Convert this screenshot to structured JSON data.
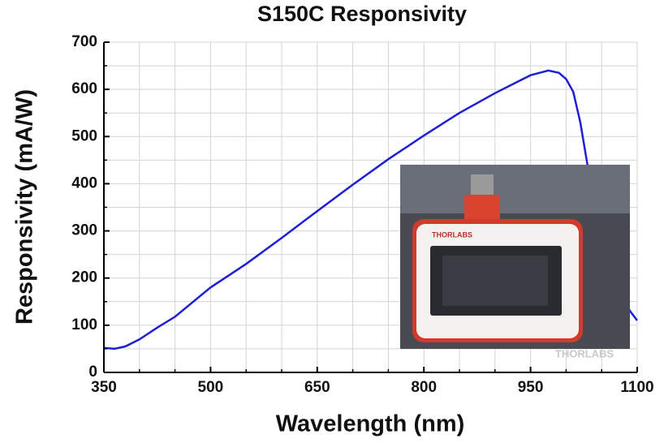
{
  "chart_data": {
    "type": "line",
    "title": "S150C Responsivity",
    "x_label": "Wavelength (nm)",
    "y_label": "Responsivity (mA/W)",
    "x": [
      350,
      365,
      380,
      400,
      425,
      450,
      500,
      550,
      600,
      650,
      700,
      750,
      800,
      850,
      900,
      950,
      975,
      990,
      1000,
      1010,
      1020,
      1030,
      1040,
      1050,
      1060,
      1075,
      1090,
      1100
    ],
    "series": [
      {
        "color": "#1f1fd6",
        "values": [
          52,
          50,
          55,
          70,
          95,
          118,
          180,
          230,
          285,
          342,
          398,
          452,
          502,
          550,
          592,
          630,
          640,
          635,
          622,
          595,
          530,
          440,
          360,
          290,
          230,
          170,
          130,
          110
        ]
      }
    ],
    "xlim": [
      350,
      1100
    ],
    "ylim": [
      0,
      700
    ],
    "xticks": [
      350,
      500,
      650,
      800,
      950,
      1100
    ],
    "yticks": [
      0,
      100,
      200,
      300,
      400,
      500,
      600,
      700
    ],
    "x_minor_ticks": [
      400,
      450,
      550,
      600,
      700,
      750,
      850,
      900,
      1000,
      1050
    ],
    "y_minor_ticks": [
      50,
      150,
      250,
      350,
      450,
      550,
      650
    ],
    "grid": true,
    "annotations": [
      "THORLABS"
    ]
  }
}
